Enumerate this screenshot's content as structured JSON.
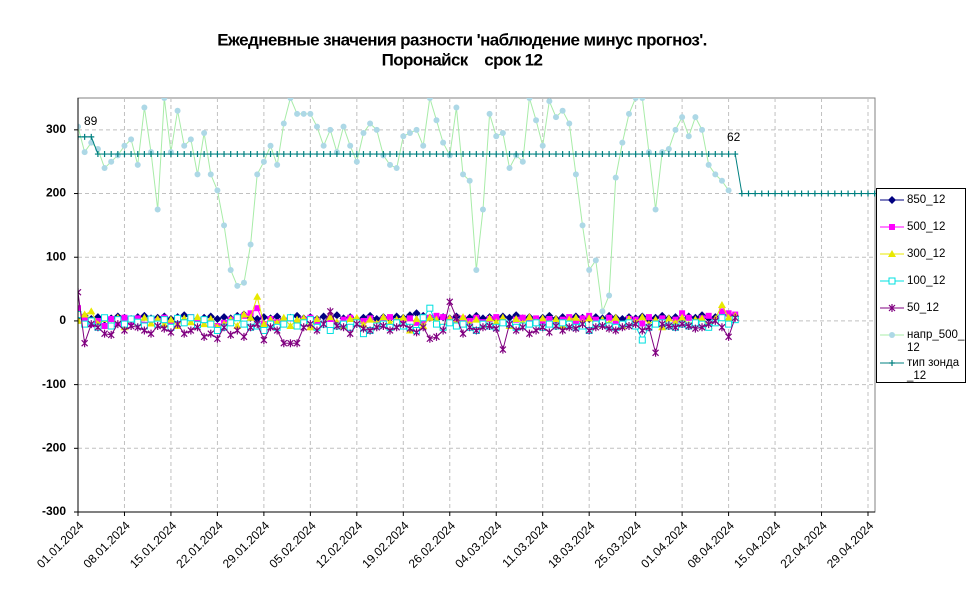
{
  "chart_data": {
    "type": "line",
    "title": "Ежедневные значения разности 'наблюдение минус прогноз'.",
    "subtitle": "Поронайск    срок 12",
    "annotations": [
      "89",
      "62"
    ],
    "grid": true,
    "legend": "right",
    "ylim": [
      -300,
      350
    ],
    "yticks": [
      -300,
      -200,
      -100,
      0,
      100,
      200,
      300
    ],
    "categories": [
      "01.01.2024",
      null,
      null,
      null,
      null,
      null,
      null,
      "08.01.2024",
      null,
      null,
      null,
      null,
      null,
      null,
      "15.01.2024",
      null,
      null,
      null,
      null,
      null,
      null,
      "22.01.2024",
      null,
      null,
      null,
      null,
      null,
      null,
      "29.01.2024",
      null,
      null,
      null,
      null,
      null,
      null,
      "05.02.2024",
      null,
      null,
      null,
      null,
      null,
      null,
      "12.02.2024",
      null,
      null,
      null,
      null,
      null,
      null,
      "19.02.2024",
      null,
      null,
      null,
      null,
      null,
      null,
      "26.02.2024",
      null,
      null,
      null,
      null,
      null,
      null,
      "04.03.2024",
      null,
      null,
      null,
      null,
      null,
      null,
      "11.03.2024",
      null,
      null,
      null,
      null,
      null,
      null,
      "18.03.2024",
      null,
      null,
      null,
      null,
      null,
      null,
      "25.03.2024",
      null,
      null,
      null,
      null,
      null,
      null,
      "01.04.2024",
      null,
      null,
      null,
      null,
      null,
      null,
      "08.04.2024",
      null,
      null,
      null,
      null,
      null,
      null,
      "15.04.2024",
      null,
      null,
      null,
      null,
      null,
      null,
      "22.04.2024",
      null,
      null,
      null,
      null,
      null,
      null,
      "29.04.2024",
      null
    ],
    "series": [
      {
        "name": "850_12",
        "color": "#000080",
        "marker": "diamond",
        "line": true,
        "values": [
          5,
          8,
          3,
          6,
          2,
          4,
          7,
          5,
          3,
          6,
          8,
          4,
          5,
          7,
          3,
          6,
          9,
          4,
          2,
          5,
          7,
          3,
          6,
          4,
          8,
          10,
          5,
          3,
          6,
          4,
          7,
          2,
          5,
          8,
          4,
          6,
          3,
          7,
          5,
          9,
          4,
          6,
          2,
          5,
          8,
          3,
          6,
          4,
          7,
          5,
          9,
          12,
          8,
          5,
          3,
          6,
          4,
          7,
          2,
          5,
          8,
          4,
          6,
          3,
          7,
          5,
          9,
          4,
          6,
          2,
          5,
          8,
          3,
          6,
          4,
          7,
          5,
          3,
          6,
          4,
          8,
          5,
          3,
          6,
          4,
          7,
          2,
          5,
          8,
          4,
          6,
          3,
          7,
          5,
          9,
          4,
          6,
          8,
          10,
          7,
          null,
          null,
          null,
          null,
          null,
          null,
          null,
          null,
          null,
          null,
          null,
          null,
          null,
          null,
          null,
          null,
          null,
          null,
          null,
          null,
          null
        ]
      },
      {
        "name": "500_12",
        "color": "#ff00ff",
        "marker": "square",
        "line": true,
        "values": [
          20,
          2,
          -5,
          0,
          -8,
          3,
          -3,
          5,
          -2,
          4,
          -6,
          2,
          0,
          5,
          -4,
          3,
          -2,
          6,
          -3,
          1,
          -5,
          -8,
          -3,
          2,
          5,
          8,
          12,
          20,
          -5,
          3,
          -2,
          0,
          4,
          -3,
          2,
          5,
          0,
          -4,
          3,
          -6,
          2,
          5,
          -3,
          0,
          4,
          -5,
          3,
          6,
          -2,
          1,
          4,
          -3,
          0,
          5,
          8,
          6,
          2,
          -3,
          4,
          0,
          5,
          -2,
          3,
          6,
          0,
          -4,
          2,
          5,
          -3,
          4,
          0,
          3,
          -5,
          2,
          6,
          -2,
          4,
          8,
          2,
          -3,
          5,
          0,
          -6,
          3,
          2,
          -4,
          6,
          -3,
          4,
          -8,
          2,
          12,
          5,
          -3,
          4,
          8,
          0,
          15,
          12,
          10,
          null,
          null,
          null,
          null,
          null,
          null,
          null,
          null,
          null,
          null,
          null,
          null,
          null,
          null,
          null,
          null,
          null,
          null,
          null,
          null,
          null
        ]
      },
      {
        "name": "300_12",
        "color": "#e8e800",
        "marker": "triangle",
        "line": true,
        "values": [
          0,
          10,
          15,
          -5,
          3,
          -8,
          5,
          -10,
          2,
          -3,
          5,
          -4,
          3,
          -6,
          2,
          -8,
          4,
          -2,
          6,
          -5,
          3,
          -10,
          -5,
          2,
          -8,
          10,
          5,
          38,
          -5,
          2,
          -3,
          5,
          -8,
          2,
          4,
          -10,
          3,
          -5,
          6,
          -2,
          -8,
          3,
          5,
          -6,
          2,
          -4,
          6,
          -3,
          2,
          5,
          -15,
          3,
          -8,
          5,
          2,
          -10,
          4,
          -3,
          6,
          -5,
          2,
          -6,
          4,
          -2,
          5,
          -8,
          3,
          -4,
          6,
          -2,
          4,
          -5,
          3,
          -8,
          2,
          5,
          -3,
          4,
          -6,
          2,
          -4,
          5,
          -8,
          3,
          -2,
          6,
          -5,
          2,
          -10,
          4,
          -3,
          5,
          -6,
          2,
          4,
          -8,
          3,
          25,
          5,
          8,
          null,
          null,
          null,
          null,
          null,
          null,
          null,
          null,
          null,
          null,
          null,
          null,
          null,
          null,
          null,
          null,
          null,
          null,
          null,
          null,
          null
        ]
      },
      {
        "name": "100_12",
        "color": "#00e0e0",
        "marker": "open-square",
        "line": true,
        "values": [
          10,
          -5,
          0,
          -10,
          5,
          -8,
          2,
          -5,
          3,
          -2,
          -8,
          3,
          -5,
          2,
          -10,
          4,
          -3,
          5,
          -6,
          2,
          -5,
          -15,
          -10,
          -3,
          5,
          -5,
          -10,
          -8,
          -15,
          -5,
          -10,
          -5,
          5,
          -8,
          -3,
          2,
          -10,
          -5,
          -15,
          -8,
          -5,
          -10,
          -3,
          -20,
          -15,
          -8,
          -5,
          -10,
          -3,
          -8,
          -10,
          -15,
          5,
          20,
          -5,
          -10,
          -3,
          -8,
          -5,
          -10,
          -15,
          -5,
          -8,
          -10,
          -3,
          -5,
          -10,
          -8,
          -5,
          -3,
          -10,
          -5,
          -8,
          -3,
          -5,
          -10,
          -8,
          -15,
          -5,
          -3,
          -8,
          -10,
          -5,
          -3,
          -8,
          -30,
          -10,
          -5,
          -3,
          -8,
          -10,
          -5,
          -8,
          -3,
          -5,
          -10,
          -3,
          5,
          -5,
          2,
          null,
          null,
          null,
          null,
          null,
          null,
          null,
          null,
          null,
          null,
          null,
          null,
          null,
          null,
          null,
          null,
          null,
          null,
          null,
          null,
          null
        ]
      },
      {
        "name": "50_12",
        "color": "#800080",
        "marker": "star",
        "line": true,
        "values": [
          45,
          -35,
          -5,
          -10,
          -20,
          -22,
          -5,
          -15,
          -8,
          -10,
          -15,
          -20,
          -8,
          -12,
          -18,
          -5,
          -20,
          -15,
          -10,
          -25,
          -20,
          -28,
          -10,
          -22,
          -15,
          -25,
          -10,
          -5,
          -30,
          -10,
          -15,
          -35,
          -35,
          -35,
          -10,
          -5,
          -15,
          -5,
          15,
          -8,
          -10,
          -20,
          -5,
          -12,
          -15,
          -10,
          -8,
          -15,
          -10,
          -5,
          -12,
          -18,
          -10,
          -28,
          -25,
          -15,
          30,
          5,
          -20,
          -10,
          -15,
          -10,
          -8,
          -12,
          -45,
          -5,
          -15,
          -10,
          -20,
          -15,
          -10,
          -18,
          -8,
          -15,
          -10,
          -12,
          -5,
          -15,
          -10,
          -8,
          -12,
          -15,
          -10,
          -8,
          -5,
          -15,
          -10,
          -50,
          -5,
          -8,
          -10,
          -5,
          -8,
          -12,
          -10,
          -5,
          0,
          -10,
          -25,
          5,
          null,
          null,
          null,
          null,
          null,
          null,
          null,
          null,
          null,
          null,
          null,
          null,
          null,
          null,
          null,
          null,
          null,
          null,
          null,
          null,
          null
        ]
      },
      {
        "name": "напр_500_12",
        "color": "#add8e6",
        "line_color": "#a8eca8",
        "marker": "circle",
        "line": true,
        "values": [
          305,
          265,
          280,
          270,
          240,
          250,
          260,
          275,
          285,
          245,
          335,
          265,
          175,
          350,
          265,
          330,
          275,
          285,
          230,
          295,
          230,
          205,
          150,
          80,
          55,
          60,
          120,
          230,
          250,
          275,
          245,
          310,
          350,
          325,
          325,
          325,
          305,
          275,
          300,
          265,
          305,
          275,
          250,
          295,
          310,
          300,
          260,
          245,
          240,
          290,
          295,
          300,
          275,
          350,
          315,
          280,
          260,
          335,
          230,
          220,
          80,
          175,
          325,
          290,
          295,
          240,
          260,
          250,
          350,
          315,
          275,
          345,
          320,
          330,
          310,
          230,
          150,
          80,
          95,
          15,
          40,
          225,
          280,
          325,
          350,
          350,
          265,
          175,
          265,
          270,
          300,
          320,
          290,
          320,
          300,
          245,
          230,
          220,
          205,
          null,
          null,
          null,
          null,
          null,
          null,
          null,
          null,
          null,
          null,
          null,
          null,
          null,
          null,
          null,
          null,
          null,
          null,
          null,
          null,
          null,
          null
        ]
      },
      {
        "name": "тип зонда_12",
        "color": "#008080",
        "marker": "plus",
        "line": true,
        "values": [
          289,
          289,
          289,
          262,
          262,
          262,
          262,
          262,
          262,
          262,
          262,
          262,
          262,
          262,
          262,
          262,
          262,
          262,
          262,
          262,
          262,
          262,
          262,
          262,
          262,
          262,
          262,
          262,
          262,
          262,
          262,
          262,
          262,
          262,
          262,
          262,
          262,
          262,
          262,
          262,
          262,
          262,
          262,
          262,
          262,
          262,
          262,
          262,
          262,
          262,
          262,
          262,
          262,
          262,
          262,
          262,
          262,
          262,
          262,
          262,
          262,
          262,
          262,
          262,
          262,
          262,
          262,
          262,
          262,
          262,
          262,
          262,
          262,
          262,
          262,
          262,
          262,
          262,
          262,
          262,
          262,
          262,
          262,
          262,
          262,
          262,
          262,
          262,
          262,
          262,
          262,
          262,
          262,
          262,
          262,
          262,
          262,
          262,
          262,
          262,
          200,
          200,
          200,
          200,
          200,
          200,
          200,
          200,
          200,
          200,
          200,
          200,
          200,
          200,
          200,
          200,
          200,
          200,
          200,
          200,
          200
        ]
      }
    ]
  }
}
